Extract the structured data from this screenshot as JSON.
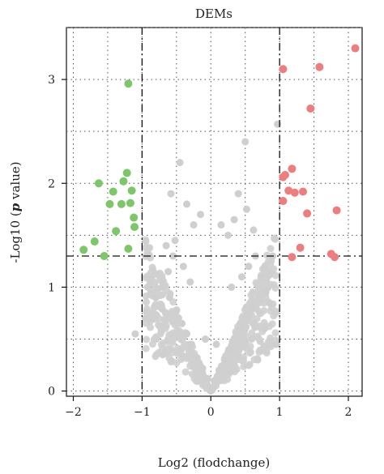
{
  "chart_data": {
    "type": "scatter",
    "title": "DEMs",
    "xlabel": "Log2 (flodchange)",
    "ylabel_parts": [
      "-Log10 (",
      "p",
      " value)"
    ],
    "xlim": [
      -2.1,
      2.2
    ],
    "ylim": [
      -0.05,
      3.5
    ],
    "xticks": [
      -2,
      -1,
      0,
      1,
      2
    ],
    "yticks": [
      0,
      1,
      2,
      3
    ],
    "grid": "dotted",
    "thresholds": {
      "x": [
        -1,
        1
      ],
      "y": 1.3
    },
    "colors": {
      "down": "#7cc768",
      "up": "#ee7d7d",
      "ns": "#cfcfcf"
    },
    "series": [
      {
        "key": "down",
        "x": [
          -1.2,
          -1.63,
          -1.22,
          -1.27,
          -1.15,
          -1.42,
          -1.3,
          -1.17,
          -1.47,
          -1.12,
          -1.11,
          -1.38,
          -1.69,
          -1.85,
          -1.2,
          -1.55
        ],
        "y": [
          2.96,
          2.0,
          2.1,
          2.02,
          1.93,
          1.92,
          1.8,
          1.81,
          1.8,
          1.67,
          1.58,
          1.54,
          1.44,
          1.36,
          1.37,
          1.3
        ]
      },
      {
        "key": "up",
        "x": [
          2.1,
          1.05,
          1.58,
          1.45,
          1.08,
          1.18,
          1.05,
          1.13,
          1.22,
          1.34,
          1.05,
          1.83,
          1.4,
          1.3,
          1.75,
          1.8,
          1.18
        ],
        "y": [
          3.3,
          3.1,
          3.12,
          2.72,
          2.08,
          2.14,
          2.06,
          1.93,
          1.91,
          1.92,
          1.83,
          1.74,
          1.71,
          1.38,
          1.32,
          1.29,
          1.29
        ]
      },
      {
        "key": "ns",
        "x": [
          0.97,
          0.5,
          -0.45,
          -0.58,
          0.0,
          0.05,
          -0.05,
          0.12,
          -0.12,
          0.2,
          -0.2,
          0.28,
          -0.28,
          0.35,
          -0.35,
          0.42,
          -0.42,
          0.5,
          -0.5,
          0.6,
          -0.6,
          0.7,
          -0.7,
          0.3,
          -0.3,
          0.45,
          -0.4,
          0.55,
          -0.55,
          0.65,
          -0.65,
          0.75,
          -0.72,
          0.8,
          -0.8,
          0.85,
          -0.88,
          0.25,
          -0.25,
          0.62,
          0.9,
          -0.95,
          -0.35,
          0.4,
          -0.15,
          0.15,
          0.08,
          -0.08,
          -0.52,
          0.52,
          0.34,
          -0.62,
          0.78,
          -0.92,
          -1.1,
          0.95,
          -0.7,
          0.68
        ],
        "y": [
          2.57,
          2.4,
          2.2,
          1.9,
          0.02,
          0.1,
          0.12,
          0.2,
          0.22,
          0.3,
          0.32,
          0.4,
          0.45,
          0.5,
          0.55,
          0.6,
          0.65,
          0.7,
          0.78,
          0.8,
          0.9,
          0.9,
          1.0,
          1.0,
          1.05,
          1.1,
          1.2,
          1.2,
          1.3,
          1.3,
          1.4,
          1.1,
          0.8,
          0.95,
          0.9,
          0.85,
          0.7,
          1.5,
          1.6,
          1.55,
          1.3,
          0.7,
          1.8,
          1.9,
          1.7,
          1.6,
          0.45,
          0.5,
          1.45,
          1.75,
          1.65,
          1.15,
          0.6,
          1.0,
          0.55,
          0.45,
          0.35,
          0.3
        ]
      }
    ]
  }
}
